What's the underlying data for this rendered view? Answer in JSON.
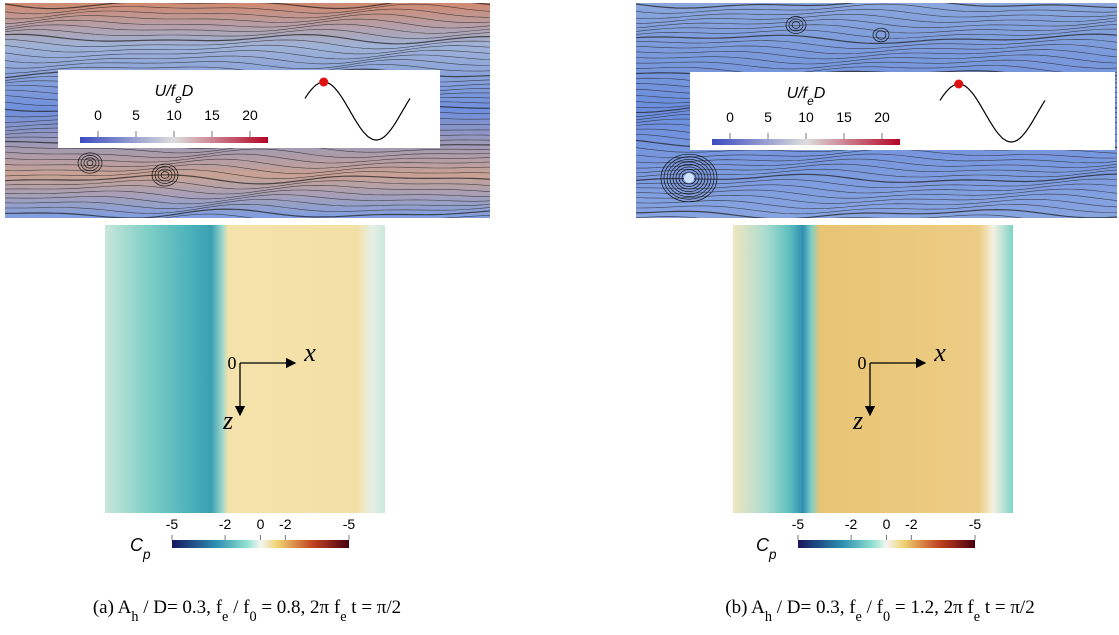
{
  "panels": [
    {
      "flow_legend": {
        "title_parts": [
          "U/f",
          "e",
          "D"
        ],
        "ticks": [
          "0",
          "5",
          "10",
          "15",
          "20"
        ]
      },
      "pressure": {
        "origin": "0",
        "x_label": "x",
        "z_label": "z",
        "colorbar_label_parts": [
          "C",
          "p"
        ],
        "colorbar_ticks": [
          "-5",
          "-2",
          "0",
          "-2",
          "-5"
        ]
      },
      "caption": [
        "(a) ",
        "A",
        "h",
        " / D= 0.3, ",
        "f",
        "e",
        " / ",
        "f",
        "0",
        " = 0.8, 2π ",
        "f",
        "e",
        " t = π/2"
      ]
    },
    {
      "flow_legend": {
        "title_parts": [
          "U/f",
          "e",
          "D"
        ],
        "ticks": [
          "0",
          "5",
          "10",
          "15",
          "20"
        ]
      },
      "pressure": {
        "origin": "0",
        "x_label": "x",
        "z_label": "z",
        "colorbar_label_parts": [
          "C",
          "p"
        ],
        "colorbar_ticks": [
          "-5",
          "-2",
          "0",
          "-2",
          "-5"
        ]
      },
      "caption": [
        "(b) ",
        "A",
        "h",
        " / D= 0.3, ",
        "f",
        "e",
        " / ",
        "f",
        "0",
        " = 1.2, 2π ",
        "f",
        "e",
        " t = π/2"
      ]
    }
  ]
}
